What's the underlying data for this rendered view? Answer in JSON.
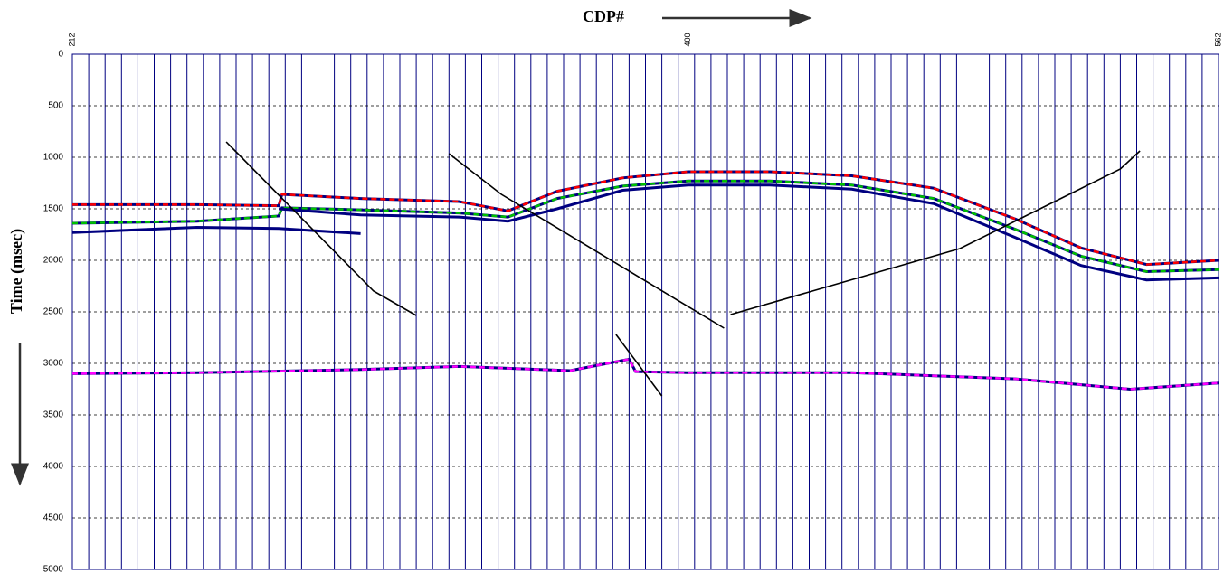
{
  "chart_data": {
    "type": "seismic",
    "title": "CDP#",
    "y_label": "Time (msec)",
    "xlim": [
      212,
      562
    ],
    "xticks": [
      212,
      400,
      562
    ],
    "ylim": [
      0,
      5000
    ],
    "yticks": [
      0,
      500,
      1000,
      1500,
      2000,
      2500,
      3000,
      3500,
      4000,
      4500,
      5000
    ],
    "y_inverted": true,
    "grid": true,
    "trace_color": "#000080",
    "series": [
      {
        "color": "#ff0000",
        "dashed": true,
        "x": [
          212,
          250,
          275,
          276,
          300,
          330,
          345,
          360,
          380,
          400,
          425,
          450,
          475,
          500,
          520,
          540,
          562
        ],
        "values": [
          1460,
          1460,
          1470,
          1360,
          1400,
          1430,
          1520,
          1330,
          1200,
          1140,
          1140,
          1180,
          1300,
          1600,
          1880,
          2040,
          2000
        ]
      },
      {
        "color": "#00c000",
        "dashed": true,
        "x": [
          212,
          250,
          275,
          276,
          300,
          330,
          345,
          360,
          380,
          400,
          425,
          450,
          475,
          500,
          520,
          540,
          562
        ],
        "values": [
          1640,
          1620,
          1570,
          1490,
          1510,
          1540,
          1580,
          1400,
          1280,
          1230,
          1230,
          1270,
          1400,
          1700,
          1960,
          2110,
          2090
        ]
      },
      {
        "color": "#000080",
        "dashed": false,
        "x": [
          212,
          250,
          275,
          300
        ],
        "values": [
          1730,
          1680,
          1690,
          1740
        ]
      },
      {
        "color": "#000080",
        "dashed": false,
        "x": [
          275,
          300,
          330,
          345,
          360,
          380,
          400,
          425,
          450,
          475,
          500,
          520,
          540,
          562
        ],
        "values": [
          1500,
          1560,
          1580,
          1620,
          1500,
          1320,
          1270,
          1270,
          1310,
          1450,
          1780,
          2050,
          2190,
          2170
        ]
      },
      {
        "color": "#ff00ff",
        "dashed": true,
        "x": [
          212,
          250,
          300,
          330,
          364,
          382,
          384,
          400,
          450,
          500,
          535,
          562
        ],
        "values": [
          3100,
          3090,
          3060,
          3030,
          3070,
          2960,
          3080,
          3090,
          3090,
          3150,
          3250,
          3190
        ]
      },
      {
        "color": "#000000",
        "dashed": false,
        "x": [
          259,
          304,
          317
        ],
        "values": [
          851,
          2298,
          2535
        ]
      },
      {
        "color": "#000000",
        "dashed": false,
        "x": [
          327,
          343,
          411
        ],
        "values": [
          965,
          1360,
          2658
        ]
      },
      {
        "color": "#000000",
        "dashed": false,
        "x": [
          413,
          483,
          532,
          538
        ],
        "values": [
          2526,
          1886,
          1114,
          939
        ]
      },
      {
        "color": "#000000",
        "dashed": false,
        "x": [
          378,
          392
        ],
        "values": [
          2719,
          3316
        ]
      }
    ]
  }
}
